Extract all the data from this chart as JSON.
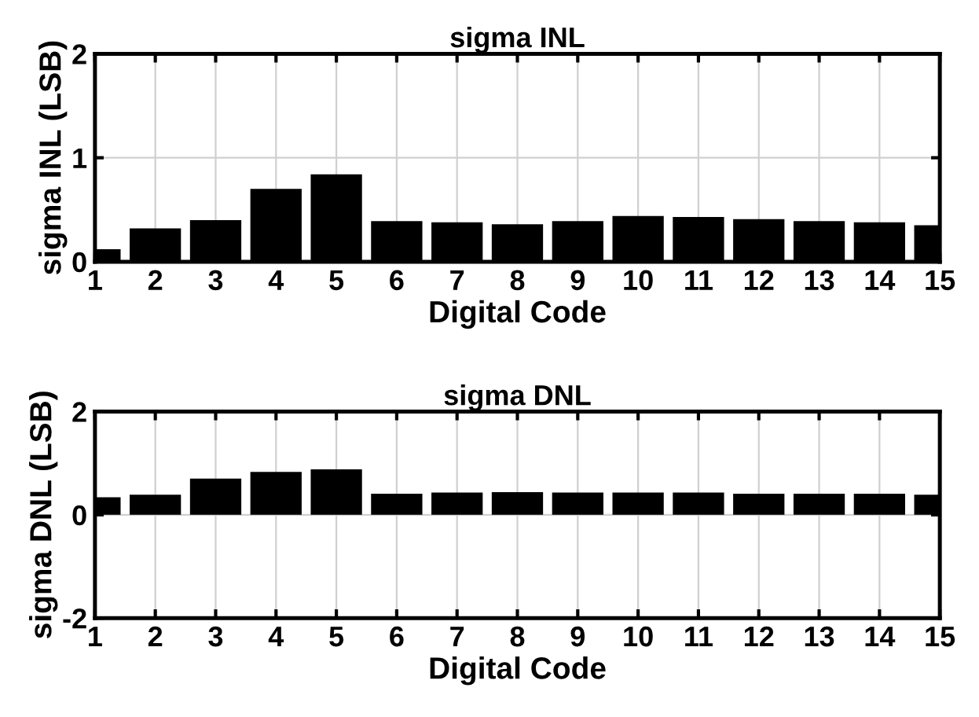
{
  "chart_data": [
    {
      "type": "bar",
      "title": "sigma INL",
      "xlabel": "Digital Code",
      "ylabel": "sigma INL (LSB)",
      "x": [
        1,
        2,
        3,
        4,
        5,
        6,
        7,
        8,
        9,
        10,
        11,
        12,
        13,
        14,
        15
      ],
      "values": [
        0.12,
        0.32,
        0.4,
        0.7,
        0.84,
        0.39,
        0.38,
        0.36,
        0.39,
        0.44,
        0.43,
        0.41,
        0.39,
        0.38,
        0.35
      ],
      "color": "#000000",
      "xlim": [
        1,
        15
      ],
      "xticks": [
        1,
        2,
        3,
        4,
        5,
        6,
        7,
        8,
        9,
        10,
        11,
        12,
        13,
        14,
        15
      ],
      "ylim": [
        0,
        2
      ],
      "yticks": [
        0,
        1,
        2
      ],
      "grid": true
    },
    {
      "type": "bar",
      "title": "sigma DNL",
      "xlabel": "Digital Code",
      "ylabel": "sigma DNL (LSB)",
      "x": [
        1,
        2,
        3,
        4,
        5,
        6,
        7,
        8,
        9,
        10,
        11,
        12,
        13,
        14,
        15
      ],
      "values": [
        0.34,
        0.39,
        0.7,
        0.83,
        0.88,
        0.41,
        0.43,
        0.44,
        0.43,
        0.43,
        0.43,
        0.41,
        0.41,
        0.41,
        0.39
      ],
      "color": "#000000",
      "xlim": [
        1,
        15
      ],
      "xticks": [
        1,
        2,
        3,
        4,
        5,
        6,
        7,
        8,
        9,
        10,
        11,
        12,
        13,
        14,
        15
      ],
      "ylim": [
        -2,
        2
      ],
      "yticks": [
        -2,
        0,
        2
      ],
      "grid": true
    }
  ]
}
